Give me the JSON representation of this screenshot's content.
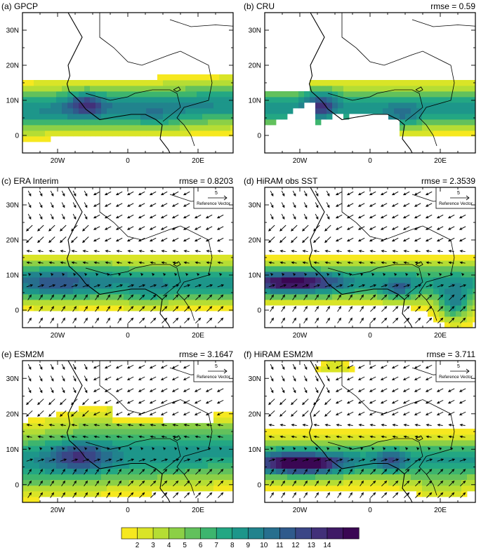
{
  "panels": [
    {
      "title": "(a) GPCP",
      "rmse": "",
      "vectors": false,
      "pattern": "gpcp"
    },
    {
      "title": "(b) CRU",
      "rmse": "rmse = 0.59",
      "vectors": false,
      "pattern": "cru"
    },
    {
      "title": "(c) ERA Interim",
      "rmse": "rmse = 0.8203",
      "vectors": true,
      "pattern": "era"
    },
    {
      "title": "(d) HiRAM obs SST",
      "rmse": "rmse = 2.3539",
      "vectors": true,
      "pattern": "hiram_obs"
    },
    {
      "title": "(e) ESM2M",
      "rmse": "rmse = 3.1647",
      "vectors": true,
      "pattern": "esm2m"
    },
    {
      "title": "(f) HiRAM ESM2M",
      "rmse": "rmse = 3.711",
      "vectors": true,
      "pattern": "hiram_esm"
    }
  ],
  "ref_vector": {
    "value": "5",
    "label": "Reference Vector"
  },
  "colorbar": {
    "labels": [
      "2",
      "3",
      "4",
      "5",
      "6",
      "7",
      "8",
      "9",
      "10",
      "11",
      "12",
      "13",
      "14"
    ],
    "colors": [
      "#f6e81f",
      "#d9e427",
      "#b5dd34",
      "#8cd046",
      "#62c15c",
      "#3db56e",
      "#23a783",
      "#1d968a",
      "#21838d",
      "#276f8e",
      "#2f5a8c",
      "#3a4686",
      "#423079",
      "#3f1a66",
      "#3a0753"
    ]
  },
  "chart_data": {
    "type": "heatmap",
    "xticks": [
      "20W",
      "0",
      "20E"
    ],
    "yticks": [
      "0",
      "10N",
      "20N",
      "30N"
    ],
    "xlim": [
      -30,
      30
    ],
    "ylim": [
      -5,
      35
    ],
    "units_levels": [
      2,
      3,
      4,
      5,
      6,
      7,
      8,
      9,
      10,
      11,
      12,
      13,
      14
    ]
  }
}
